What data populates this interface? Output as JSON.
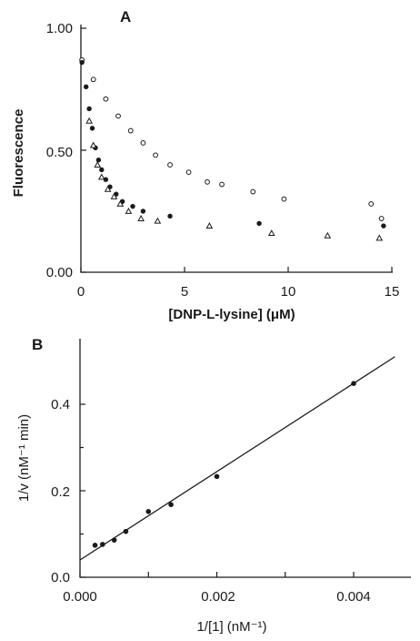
{
  "chart_data": [
    {
      "panel": "A",
      "type": "scatter",
      "xlabel": "[DNP-L-lysine] (μM)",
      "ylabel": "Fluorescence",
      "xlim": [
        0,
        15
      ],
      "ylim": [
        0,
        1.0
      ],
      "xticks": [
        "0",
        "5",
        "10",
        "15"
      ],
      "yticks": [
        "0.00",
        "0.50",
        "1.00"
      ],
      "grid": false,
      "series": [
        {
          "marker": "open-circle",
          "points": [
            [
              0.05,
              0.87
            ],
            [
              0.6,
              0.79
            ],
            [
              1.2,
              0.71
            ],
            [
              1.8,
              0.64
            ],
            [
              2.4,
              0.58
            ],
            [
              3.0,
              0.53
            ],
            [
              3.6,
              0.48
            ],
            [
              4.3,
              0.44
            ],
            [
              5.2,
              0.41
            ],
            [
              6.1,
              0.37
            ],
            [
              6.8,
              0.36
            ],
            [
              8.3,
              0.33
            ],
            [
              9.8,
              0.3
            ],
            [
              14.0,
              0.28
            ],
            [
              14.5,
              0.22
            ]
          ]
        },
        {
          "marker": "filled-circle",
          "points": [
            [
              0.05,
              0.86
            ],
            [
              0.25,
              0.76
            ],
            [
              0.4,
              0.67
            ],
            [
              0.55,
              0.59
            ],
            [
              0.7,
              0.51
            ],
            [
              0.85,
              0.46
            ],
            [
              1.0,
              0.42
            ],
            [
              1.2,
              0.38
            ],
            [
              1.4,
              0.35
            ],
            [
              1.7,
              0.32
            ],
            [
              2.0,
              0.29
            ],
            [
              2.5,
              0.27
            ],
            [
              3.0,
              0.25
            ],
            [
              4.3,
              0.23
            ],
            [
              8.6,
              0.2
            ],
            [
              14.6,
              0.19
            ]
          ]
        },
        {
          "marker": "open-triangle",
          "points": [
            [
              0.4,
              0.62
            ],
            [
              0.6,
              0.52
            ],
            [
              0.8,
              0.44
            ],
            [
              1.0,
              0.39
            ],
            [
              1.3,
              0.34
            ],
            [
              1.6,
              0.31
            ],
            [
              1.9,
              0.28
            ],
            [
              2.3,
              0.25
            ],
            [
              2.9,
              0.22
            ],
            [
              3.7,
              0.21
            ],
            [
              6.2,
              0.19
            ],
            [
              9.2,
              0.16
            ],
            [
              11.9,
              0.15
            ],
            [
              14.4,
              0.14
            ]
          ]
        }
      ]
    },
    {
      "panel": "B",
      "type": "scatter",
      "xlabel": "1/[1] (nM⁻¹)",
      "ylabel": "1/v (nM⁻¹ min)",
      "xlim": [
        0,
        0.0047
      ],
      "ylim": [
        0,
        0.51
      ],
      "xticks": [
        "0.000",
        "0.002",
        "0.004"
      ],
      "yticks": [
        "0.0",
        "0.2",
        "0.4"
      ],
      "grid": false,
      "points": [
        [
          0.00022,
          0.074
        ],
        [
          0.00033,
          0.076
        ],
        [
          0.0005,
          0.086
        ],
        [
          0.00067,
          0.106
        ],
        [
          0.001,
          0.152
        ],
        [
          0.00133,
          0.168
        ],
        [
          0.002,
          0.233
        ],
        [
          0.004,
          0.448
        ]
      ],
      "fit_line": {
        "slope": 102.1,
        "intercept": 0.04
      }
    }
  ]
}
